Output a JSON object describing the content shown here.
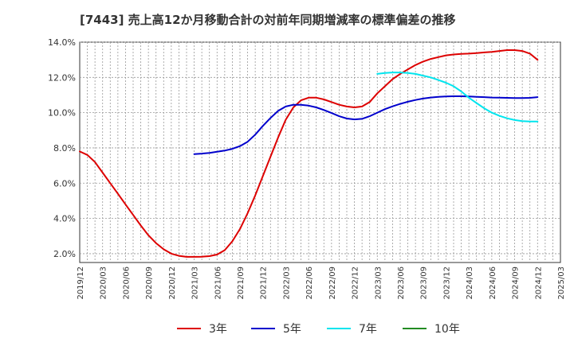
{
  "chart_data": {
    "type": "line",
    "title": "[7443]  売上高12か月移動合計の対前年同期増減率の標準偏差の推移",
    "xlabel": "",
    "ylabel": "",
    "ylim": [
      1.5,
      14.0
    ],
    "yticks": [
      "2.0%",
      "4.0%",
      "6.0%",
      "8.0%",
      "10.0%",
      "12.0%",
      "14.0%"
    ],
    "ytick_values": [
      2,
      4,
      6,
      8,
      10,
      12,
      14
    ],
    "xticks": [
      "2019/12",
      "2020/03",
      "2020/06",
      "2020/09",
      "2020/12",
      "2021/03",
      "2021/06",
      "2021/09",
      "2021/12",
      "2022/03",
      "2022/06",
      "2022/09",
      "2022/12",
      "2023/03",
      "2023/06",
      "2023/09",
      "2023/12",
      "2024/03",
      "2024/06",
      "2024/09",
      "2024/12",
      "2025/03"
    ],
    "grid": true,
    "legend_position": "bottom",
    "series": [
      {
        "name": "3年",
        "color": "#dd0000",
        "x": [
          "2019/12",
          "2020/01",
          "2020/02",
          "2020/03",
          "2020/04",
          "2020/05",
          "2020/06",
          "2020/07",
          "2020/08",
          "2020/09",
          "2020/10",
          "2020/11",
          "2020/12",
          "2021/01",
          "2021/02",
          "2021/03",
          "2021/04",
          "2021/05",
          "2021/06",
          "2021/07",
          "2021/08",
          "2021/09",
          "2021/10",
          "2021/11",
          "2021/12",
          "2022/01",
          "2022/02",
          "2022/03",
          "2022/04",
          "2022/05",
          "2022/06",
          "2022/07",
          "2022/08",
          "2022/09",
          "2022/10",
          "2022/11",
          "2022/12",
          "2023/01",
          "2023/02",
          "2023/03",
          "2023/04",
          "2023/05",
          "2023/06",
          "2023/07",
          "2023/08",
          "2023/09",
          "2023/10",
          "2023/11",
          "2023/12",
          "2024/01",
          "2024/02",
          "2024/03",
          "2024/04",
          "2024/05",
          "2024/06",
          "2024/07",
          "2024/08",
          "2024/09",
          "2024/10",
          "2024/11",
          "2024/12"
        ],
        "values": [
          7.8,
          7.6,
          7.2,
          6.6,
          6.0,
          5.4,
          4.8,
          4.2,
          3.6,
          3.05,
          2.6,
          2.25,
          2.0,
          1.88,
          1.82,
          1.82,
          1.83,
          1.86,
          1.95,
          2.2,
          2.7,
          3.4,
          4.3,
          5.3,
          6.4,
          7.5,
          8.6,
          9.6,
          10.3,
          10.7,
          10.85,
          10.85,
          10.75,
          10.6,
          10.45,
          10.35,
          10.3,
          10.35,
          10.6,
          11.1,
          11.5,
          11.9,
          12.2,
          12.45,
          12.7,
          12.9,
          13.05,
          13.15,
          13.25,
          13.3,
          13.33,
          13.35,
          13.38,
          13.42,
          13.45,
          13.5,
          13.55,
          13.55,
          13.5,
          13.35,
          13.0
        ]
      },
      {
        "name": "5年",
        "color": "#0000cc",
        "x": [
          "2021/03",
          "2021/04",
          "2021/05",
          "2021/06",
          "2021/07",
          "2021/08",
          "2021/09",
          "2021/10",
          "2021/11",
          "2021/12",
          "2022/01",
          "2022/02",
          "2022/03",
          "2022/04",
          "2022/05",
          "2022/06",
          "2022/07",
          "2022/08",
          "2022/09",
          "2022/10",
          "2022/11",
          "2022/12",
          "2023/01",
          "2023/02",
          "2023/03",
          "2023/04",
          "2023/05",
          "2023/06",
          "2023/07",
          "2023/08",
          "2023/09",
          "2023/10",
          "2023/11",
          "2023/12",
          "2024/01",
          "2024/02",
          "2024/03",
          "2024/04",
          "2024/05",
          "2024/06",
          "2024/07",
          "2024/08",
          "2024/09",
          "2024/10",
          "2024/11",
          "2024/12"
        ],
        "values": [
          7.65,
          7.68,
          7.72,
          7.78,
          7.85,
          7.95,
          8.1,
          8.35,
          8.75,
          9.25,
          9.7,
          10.1,
          10.35,
          10.45,
          10.45,
          10.4,
          10.3,
          10.15,
          9.98,
          9.8,
          9.67,
          9.62,
          9.65,
          9.8,
          10.0,
          10.2,
          10.36,
          10.5,
          10.62,
          10.72,
          10.8,
          10.86,
          10.9,
          10.92,
          10.93,
          10.93,
          10.92,
          10.9,
          10.88,
          10.86,
          10.85,
          10.84,
          10.83,
          10.83,
          10.84,
          10.88
        ]
      },
      {
        "name": "7年",
        "color": "#00e5ee",
        "x": [
          "2023/03",
          "2023/04",
          "2023/05",
          "2023/06",
          "2023/07",
          "2023/08",
          "2023/09",
          "2023/10",
          "2023/11",
          "2023/12",
          "2024/01",
          "2024/02",
          "2024/03",
          "2024/04",
          "2024/05",
          "2024/06",
          "2024/07",
          "2024/08",
          "2024/09",
          "2024/10",
          "2024/11",
          "2024/12"
        ],
        "values": [
          12.2,
          12.25,
          12.28,
          12.28,
          12.25,
          12.2,
          12.1,
          12.0,
          11.85,
          11.7,
          11.5,
          11.2,
          10.85,
          10.55,
          10.25,
          10.0,
          9.82,
          9.68,
          9.58,
          9.52,
          9.5,
          9.5
        ]
      },
      {
        "name": "10年",
        "color": "#228b22",
        "x": [],
        "values": []
      }
    ]
  }
}
